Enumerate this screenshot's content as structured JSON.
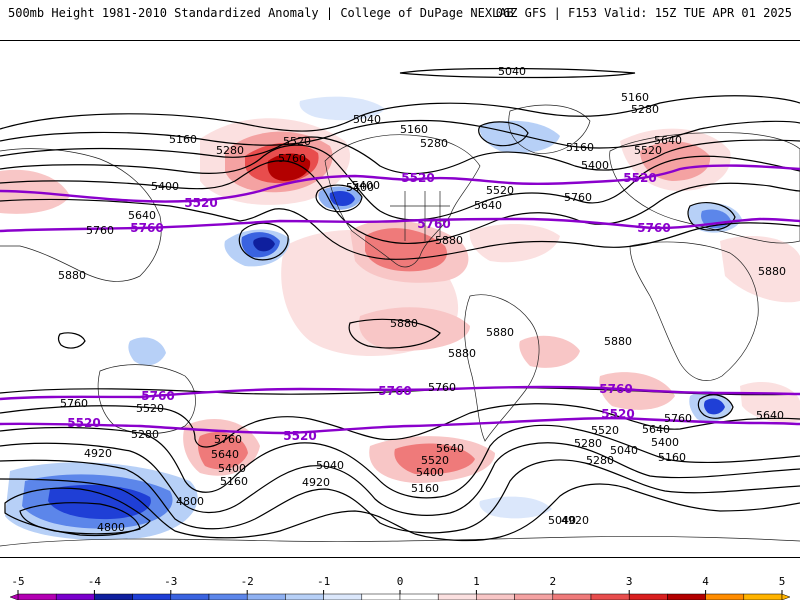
{
  "header": {
    "title_left": "500mb Height 1981-2010 Standardized Anomaly | College of DuPage NEXLAB",
    "title_right": "06Z GFS | F153 Valid: 15Z TUE APR 01 2025"
  },
  "colors": {
    "contour": "#000000",
    "highlight_contour": "#8a00cc",
    "coast": "#222222"
  },
  "legend": {
    "ticks": [
      "-5",
      "-4",
      "-3",
      "-2",
      "-1",
      "0",
      "1",
      "2",
      "3",
      "4",
      "5"
    ],
    "segments": [
      {
        "min": -5.0,
        "max": -4.5,
        "color": "#b300b3"
      },
      {
        "min": -4.5,
        "max": -4.0,
        "color": "#7a00cc"
      },
      {
        "min": -4.0,
        "max": -3.5,
        "color": "#0f1f9e"
      },
      {
        "min": -3.5,
        "max": -3.0,
        "color": "#1f3fd6"
      },
      {
        "min": -3.0,
        "max": -2.5,
        "color": "#3a63e0"
      },
      {
        "min": -2.5,
        "max": -2.0,
        "color": "#5c86ea"
      },
      {
        "min": -2.0,
        "max": -1.5,
        "color": "#8fb1f2"
      },
      {
        "min": -1.5,
        "max": -1.0,
        "color": "#b7d0f7"
      },
      {
        "min": -1.0,
        "max": -0.5,
        "color": "#dbe7fb"
      },
      {
        "min": -0.5,
        "max": 0.0,
        "color": "#ffffff"
      },
      {
        "min": 0.0,
        "max": 0.5,
        "color": "#ffffff"
      },
      {
        "min": 0.5,
        "max": 1.0,
        "color": "#fbe0e0"
      },
      {
        "min": 1.0,
        "max": 1.5,
        "color": "#f8c6c6"
      },
      {
        "min": 1.5,
        "max": 2.0,
        "color": "#f4a2a2"
      },
      {
        "min": 2.0,
        "max": 2.5,
        "color": "#ef7a7a"
      },
      {
        "min": 2.5,
        "max": 3.0,
        "color": "#e84d4d"
      },
      {
        "min": 3.0,
        "max": 3.5,
        "color": "#d91f1f"
      },
      {
        "min": 3.5,
        "max": 4.0,
        "color": "#b30000"
      },
      {
        "min": 4.0,
        "max": 4.5,
        "color": "#ff8c00"
      },
      {
        "min": 4.5,
        "max": 5.0,
        "color": "#ffb300"
      }
    ]
  },
  "contour_labels": [
    {
      "v": "5040",
      "c": "k"
    },
    {
      "v": "5160",
      "c": "k"
    },
    {
      "v": "5280",
      "c": "k"
    },
    {
      "v": "5040",
      "c": "k"
    },
    {
      "v": "5160",
      "c": "k"
    },
    {
      "v": "5280",
      "c": "k"
    },
    {
      "v": "5520",
      "c": "k"
    },
    {
      "v": "5760",
      "c": "k"
    },
    {
      "v": "5400",
      "c": "k"
    },
    {
      "v": "5520",
      "c": "p"
    },
    {
      "v": "5640",
      "c": "k"
    },
    {
      "v": "5760",
      "c": "p"
    },
    {
      "v": "5760",
      "c": "k"
    },
    {
      "v": "5880",
      "c": "k"
    },
    {
      "v": "5520",
      "c": "p"
    },
    {
      "v": "5640",
      "c": "k"
    },
    {
      "v": "5760",
      "c": "p"
    },
    {
      "v": "5880",
      "c": "k"
    },
    {
      "v": "5880",
      "c": "k"
    },
    {
      "v": "5880",
      "c": "k"
    },
    {
      "v": "5760",
      "c": "k"
    },
    {
      "v": "5760",
      "c": "p"
    },
    {
      "v": "5520",
      "c": "k"
    },
    {
      "v": "5520",
      "c": "p"
    },
    {
      "v": "5280",
      "c": "k"
    },
    {
      "v": "4920",
      "c": "k"
    },
    {
      "v": "4800",
      "c": "k"
    },
    {
      "v": "4800",
      "c": "k"
    },
    {
      "v": "5760",
      "c": "k"
    },
    {
      "v": "5640",
      "c": "k"
    },
    {
      "v": "5400",
      "c": "k"
    },
    {
      "v": "5160",
      "c": "k"
    },
    {
      "v": "5520",
      "c": "p"
    },
    {
      "v": "5760",
      "c": "p"
    },
    {
      "v": "5760",
      "c": "k"
    },
    {
      "v": "5040",
      "c": "k"
    },
    {
      "v": "4920",
      "c": "k"
    },
    {
      "v": "5640",
      "c": "k"
    },
    {
      "v": "5520",
      "c": "k"
    },
    {
      "v": "5400",
      "c": "k"
    },
    {
      "v": "5160",
      "c": "k"
    },
    {
      "v": "5760",
      "c": "p"
    },
    {
      "v": "5520",
      "c": "p"
    },
    {
      "v": "5520",
      "c": "k"
    },
    {
      "v": "5280",
      "c": "k"
    },
    {
      "v": "5040",
      "c": "k"
    },
    {
      "v": "5160",
      "c": "k"
    },
    {
      "v": "5640",
      "c": "k"
    },
    {
      "v": "5400",
      "c": "k"
    },
    {
      "v": "5760",
      "c": "k"
    },
    {
      "v": "4920",
      "c": "k"
    },
    {
      "v": "5880",
      "c": "k"
    },
    {
      "v": "5520",
      "c": "k"
    },
    {
      "v": "5640",
      "c": "k"
    },
    {
      "v": "5400",
      "c": "k"
    },
    {
      "v": "5400",
      "c": "k"
    },
    {
      "v": "5520",
      "c": "p"
    },
    {
      "v": "5760",
      "c": "p"
    },
    {
      "v": "5880",
      "c": "k"
    },
    {
      "v": "5880",
      "c": "k"
    },
    {
      "v": "5160",
      "c": "k"
    },
    {
      "v": "5280",
      "c": "k"
    },
    {
      "v": "5040",
      "c": "k"
    },
    {
      "v": "5160",
      "c": "k"
    },
    {
      "v": "5280",
      "c": "k"
    },
    {
      "v": "5400",
      "c": "k"
    },
    {
      "v": "5520",
      "c": "k"
    },
    {
      "v": "5640",
      "c": "k"
    },
    {
      "v": "5760",
      "c": "k"
    }
  ]
}
